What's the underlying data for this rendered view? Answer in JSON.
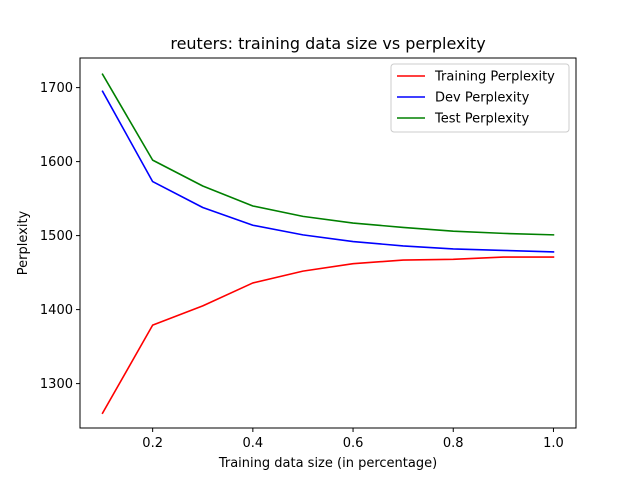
{
  "chart_data": {
    "type": "line",
    "title": "reuters: training data size vs perplexity",
    "xlabel": "Training data size (in percentage)",
    "ylabel": "Perplexity",
    "x": [
      0.1,
      0.2,
      0.3,
      0.4,
      0.5,
      0.6,
      0.7,
      0.8,
      0.9,
      1.0
    ],
    "xlim": [
      0.055,
      1.045
    ],
    "ylim": [
      1240,
      1740
    ],
    "xticks": [
      0.2,
      0.4,
      0.6,
      0.8,
      1.0
    ],
    "xtick_labels": [
      "0.2",
      "0.4",
      "0.6",
      "0.8",
      "1.0"
    ],
    "yticks": [
      1300,
      1400,
      1500,
      1600,
      1700
    ],
    "ytick_labels": [
      "1300",
      "1400",
      "1500",
      "1600",
      "1700"
    ],
    "grid": false,
    "legend_position": "top-right",
    "series": [
      {
        "name": "Training Perplexity",
        "color": "#ff0000",
        "values": [
          1260,
          1379,
          1405,
          1436,
          1452,
          1462,
          1467,
          1468,
          1471,
          1471
        ]
      },
      {
        "name": "Dev Perplexity",
        "color": "#0000ff",
        "values": [
          1695,
          1573,
          1538,
          1514,
          1501,
          1492,
          1486,
          1482,
          1480,
          1478
        ]
      },
      {
        "name": "Test Perplexity",
        "color": "#008000",
        "values": [
          1718,
          1602,
          1567,
          1540,
          1526,
          1517,
          1511,
          1506,
          1503,
          1501
        ]
      }
    ]
  }
}
